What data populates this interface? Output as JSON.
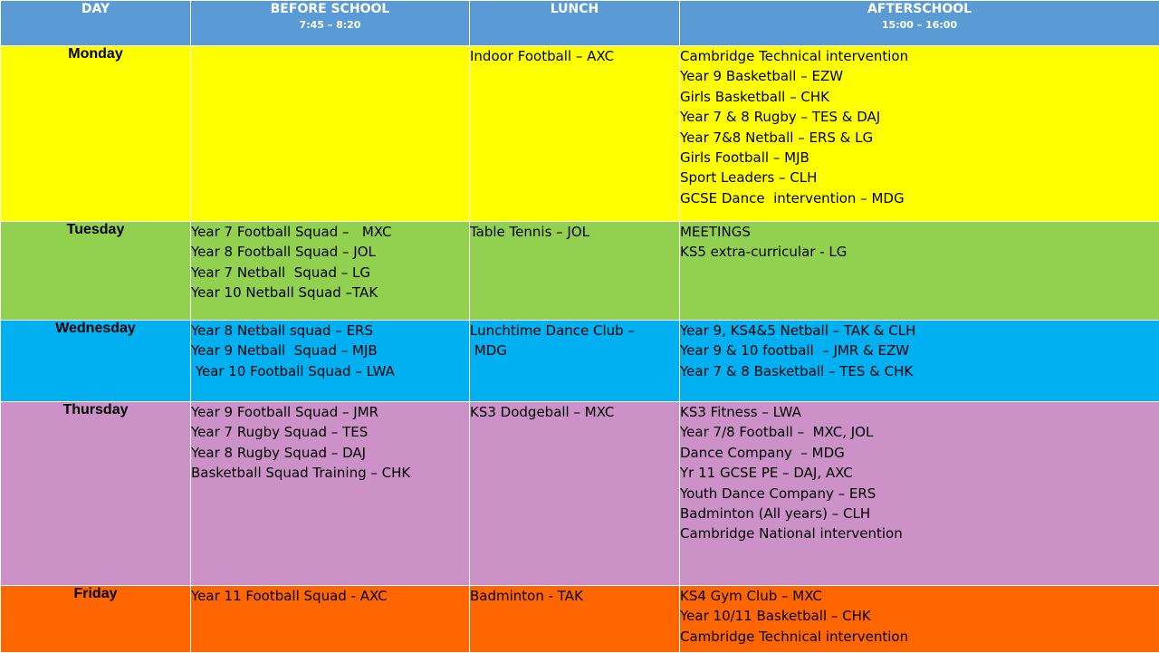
{
  "header": {
    "day": "DAY",
    "before_school": "BEFORE SCHOOL",
    "before_school_time": "7:45 – 8:20",
    "lunch": "LUNCH",
    "afterschool": "AFTERSCHOOL",
    "afterschool_time": "15:00 – 16:00"
  },
  "colors": {
    "header": "#5b9bd5",
    "monday": "#ffff00",
    "tuesday": "#92d050",
    "wednesday": "#00b0f0",
    "thursday": "#cc92c8",
    "friday": "#ff6600"
  },
  "rows": [
    {
      "day": "Monday",
      "before": [],
      "lunch": [
        "Indoor Football – AXC"
      ],
      "after": [
        "Cambridge Technical intervention",
        "Year 9 Basketball – EZW",
        "Girls Basketball – CHK",
        "Year 7 & 8 Rugby – TES & DAJ",
        "Year 7&8 Netball – ERS & LG",
        "Girls Football – MJB",
        "Sport Leaders – CLH",
        "GCSE Dance  intervention – MDG"
      ]
    },
    {
      "day": "Tuesday",
      "before": [
        "Year 7 Football Squad –   MXC",
        "Year 8 Football Squad – JOL",
        "Year 7 Netball  Squad – LG",
        "Year 10 Netball Squad –TAK"
      ],
      "lunch": [
        "Table Tennis – JOL"
      ],
      "after": [
        "MEETINGS",
        "KS5 extra-curricular - LG"
      ]
    },
    {
      "day": "Wednesday",
      "before": [
        "Year 8 Netball squad – ERS",
        "Year 9 Netball  Squad – MJB",
        " Year 10 Football Squad – LWA"
      ],
      "lunch": [
        "Lunchtime Dance Club –",
        " MDG"
      ],
      "after": [
        "Year 9, KS4&5 Netball – TAK & CLH",
        "Year 9 & 10 football  – JMR & EZW",
        "Year 7 & 8 Basketball – TES & CHK"
      ]
    },
    {
      "day": "Thursday",
      "before": [
        "Year 9 Football Squad – JMR",
        "Year 7 Rugby Squad – TES",
        "Year 8 Rugby Squad – DAJ",
        "Basketball Squad Training – CHK"
      ],
      "lunch": [
        "KS3 Dodgeball – MXC"
      ],
      "after": [
        "KS3 Fitness – LWA",
        "Year 7/8 Football –  MXC, JOL",
        "Dance Company  – MDG",
        "Yr 11 GCSE PE – DAJ, AXC",
        "Youth Dance Company – ERS",
        "Badminton (All years) – CLH",
        "Cambridge National intervention"
      ]
    },
    {
      "day": "Friday",
      "before": [
        "Year 11 Football Squad - AXC"
      ],
      "lunch": [
        "Badminton - TAK"
      ],
      "after": [
        "KS4 Gym Club – MXC",
        "Year 10/11 Basketball – CHK",
        "Cambridge Technical intervention"
      ]
    }
  ]
}
